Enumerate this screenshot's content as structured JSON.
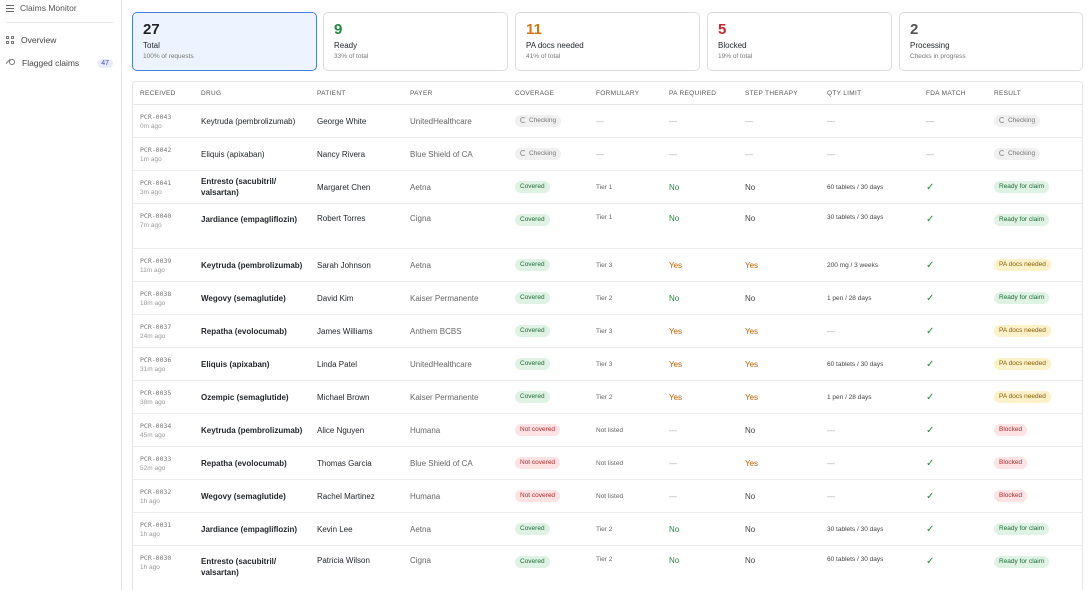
{
  "sidebar": {
    "title": "Claims Monitor",
    "items": [
      {
        "label": "Overview",
        "icon": "grid-icon"
      },
      {
        "label": "Flagged claims",
        "icon": "key-icon",
        "badge": "47"
      }
    ]
  },
  "stats": [
    {
      "number": "27",
      "label": "Total",
      "sub": "100% of requests",
      "color": "#1f2328",
      "active": true
    },
    {
      "number": "9",
      "label": "Ready",
      "sub": "33% of total",
      "color": "#1f8a3e"
    },
    {
      "number": "11",
      "label": "PA docs needed",
      "sub": "41% of total",
      "color": "#d9730d"
    },
    {
      "number": "5",
      "label": "Blocked",
      "sub": "19% of total",
      "color": "#c62828"
    },
    {
      "number": "2",
      "label": "Processing",
      "sub": "Checks in progress",
      "color": "#555555"
    }
  ],
  "table": {
    "headers": [
      "RECEIVED",
      "DRUG",
      "PATIENT",
      "PAYER",
      "COVERAGE",
      "FORMULARY",
      "PA REQUIRED",
      "STEP THERAPY",
      "QTY LIMIT",
      "FDA MATCH",
      "RESULT"
    ],
    "rows": [
      {
        "id": "PCR-0043",
        "ago": "0m ago",
        "drug": "Keytruda (pembrolizumab)",
        "patient": "George White",
        "payer": "UnitedHealthcare",
        "coverage": "Checking",
        "coverage_type": "checking",
        "formulary": "—",
        "pa": "—",
        "pa_type": "dash",
        "step": "—",
        "step_type": "dash",
        "qty": "—",
        "fda": "—",
        "result": "Checking",
        "result_type": "checking"
      },
      {
        "id": "PCR-0042",
        "ago": "1m ago",
        "drug": "Eliquis (apixaban)",
        "patient": "Nancy Rivera",
        "payer": "Blue Shield of CA",
        "coverage": "Checking",
        "coverage_type": "checking",
        "formulary": "—",
        "pa": "—",
        "pa_type": "dash",
        "step": "—",
        "step_type": "dash",
        "qty": "—",
        "fda": "—",
        "result": "Checking",
        "result_type": "checking"
      },
      {
        "id": "PCR-0041",
        "ago": "3m ago",
        "drug": "Entresto (sacubitril/ valsartan)",
        "patient": "Margaret Chen",
        "payer": "Aetna",
        "coverage": "Covered",
        "coverage_type": "covered",
        "formulary": "Tier 1",
        "pa": "No",
        "pa_type": "no",
        "step": "No",
        "step_type": "plain",
        "qty": "60 tablets / 30 days",
        "fda": "✓",
        "result": "Ready for claim",
        "result_type": "ready"
      },
      {
        "id": "PCR-0040",
        "ago": "7m ago",
        "drug": "Jardiance (empagliflozin)",
        "patient": "Robert Torres",
        "payer": "Cigna",
        "coverage": "Covered",
        "coverage_type": "covered",
        "formulary": "Tier 1",
        "pa": "No",
        "pa_type": "no",
        "step": "No",
        "step_type": "plain",
        "qty": "30 tablets / 30 days",
        "fda": "✓",
        "result": "Ready for claim",
        "result_type": "ready"
      },
      {
        "id": "PCR-0039",
        "ago": "11m ago",
        "drug": "Keytruda (pembrolizumab)",
        "patient": "Sarah Johnson",
        "payer": "Aetna",
        "coverage": "Covered",
        "coverage_type": "covered",
        "formulary": "Tier 3",
        "pa": "Yes",
        "pa_type": "yes",
        "step": "Yes",
        "step_type": "yes",
        "qty": "200 mg / 3 weeks",
        "fda": "✓",
        "result": "PA docs needed",
        "result_type": "pa"
      },
      {
        "id": "PCR-0038",
        "ago": "18m ago",
        "drug": "Wegovy (semaglutide)",
        "patient": "David Kim",
        "payer": "Kaiser Permanente",
        "coverage": "Covered",
        "coverage_type": "covered",
        "formulary": "Tier 2",
        "pa": "No",
        "pa_type": "no",
        "step": "No",
        "step_type": "plain",
        "qty": "1 pen / 28 days",
        "fda": "✓",
        "result": "Ready for claim",
        "result_type": "ready"
      },
      {
        "id": "PCR-0037",
        "ago": "24m ago",
        "drug": "Repatha (evolocumab)",
        "patient": "James Williams",
        "payer": "Anthem BCBS",
        "coverage": "Covered",
        "coverage_type": "covered",
        "formulary": "Tier 3",
        "pa": "Yes",
        "pa_type": "yes",
        "step": "Yes",
        "step_type": "yes",
        "qty": "—",
        "fda": "✓",
        "result": "PA docs needed",
        "result_type": "pa"
      },
      {
        "id": "PCR-0036",
        "ago": "31m ago",
        "drug": "Eliquis (apixaban)",
        "patient": "Linda Patel",
        "payer": "UnitedHealthcare",
        "coverage": "Covered",
        "coverage_type": "covered",
        "formulary": "Tier 3",
        "pa": "Yes",
        "pa_type": "yes",
        "step": "Yes",
        "step_type": "yes",
        "qty": "60 tablets / 30 days",
        "fda": "✓",
        "result": "PA docs needed",
        "result_type": "pa"
      },
      {
        "id": "PCR-0035",
        "ago": "38m ago",
        "drug": "Ozempic (semaglutide)",
        "patient": "Michael Brown",
        "payer": "Kaiser Permanente",
        "coverage": "Covered",
        "coverage_type": "covered",
        "formulary": "Tier 2",
        "pa": "Yes",
        "pa_type": "yes",
        "step": "Yes",
        "step_type": "yes",
        "qty": "1 pen / 28 days",
        "fda": "✓",
        "result": "PA docs needed",
        "result_type": "pa"
      },
      {
        "id": "PCR-0034",
        "ago": "45m ago",
        "drug": "Keytruda (pembrolizumab)",
        "patient": "Alice Nguyen",
        "payer": "Humana",
        "coverage": "Not covered",
        "coverage_type": "notcovered",
        "formulary": "Not listed",
        "pa": "—",
        "pa_type": "dash",
        "step": "No",
        "step_type": "plain",
        "qty": "—",
        "fda": "✓",
        "result": "Blocked",
        "result_type": "blocked"
      },
      {
        "id": "PCR-0033",
        "ago": "52m ago",
        "drug": "Repatha (evolocumab)",
        "patient": "Thomas Garcia",
        "payer": "Blue Shield of CA",
        "coverage": "Not covered",
        "coverage_type": "notcovered",
        "formulary": "Not listed",
        "pa": "—",
        "pa_type": "dash",
        "step": "Yes",
        "step_type": "yes",
        "qty": "—",
        "fda": "✓",
        "result": "Blocked",
        "result_type": "blocked"
      },
      {
        "id": "PCR-0032",
        "ago": "1h ago",
        "drug": "Wegovy (semaglutide)",
        "patient": "Rachel Martinez",
        "payer": "Humana",
        "coverage": "Not covered",
        "coverage_type": "notcovered",
        "formulary": "Not listed",
        "pa": "—",
        "pa_type": "dash",
        "step": "No",
        "step_type": "plain",
        "qty": "—",
        "fda": "✓",
        "result": "Blocked",
        "result_type": "blocked"
      },
      {
        "id": "PCR-0031",
        "ago": "1h ago",
        "drug": "Jardiance (empagliflozin)",
        "patient": "Kevin Lee",
        "payer": "Aetna",
        "coverage": "Covered",
        "coverage_type": "covered",
        "formulary": "Tier 2",
        "pa": "No",
        "pa_type": "no",
        "step": "No",
        "step_type": "plain",
        "qty": "30 tablets / 30 days",
        "fda": "✓",
        "result": "Ready for claim",
        "result_type": "ready"
      },
      {
        "id": "PCR-0030",
        "ago": "1h ago",
        "drug": "Entresto (sacubitril/ valsartan)",
        "patient": "Patricia Wilson",
        "payer": "Cigna",
        "coverage": "Covered",
        "coverage_type": "covered",
        "formulary": "Tier 2",
        "pa": "No",
        "pa_type": "no",
        "step": "No",
        "step_type": "plain",
        "qty": "60 tablets / 30 days",
        "fda": "✓",
        "result": "Ready for claim",
        "result_type": "ready"
      }
    ]
  }
}
